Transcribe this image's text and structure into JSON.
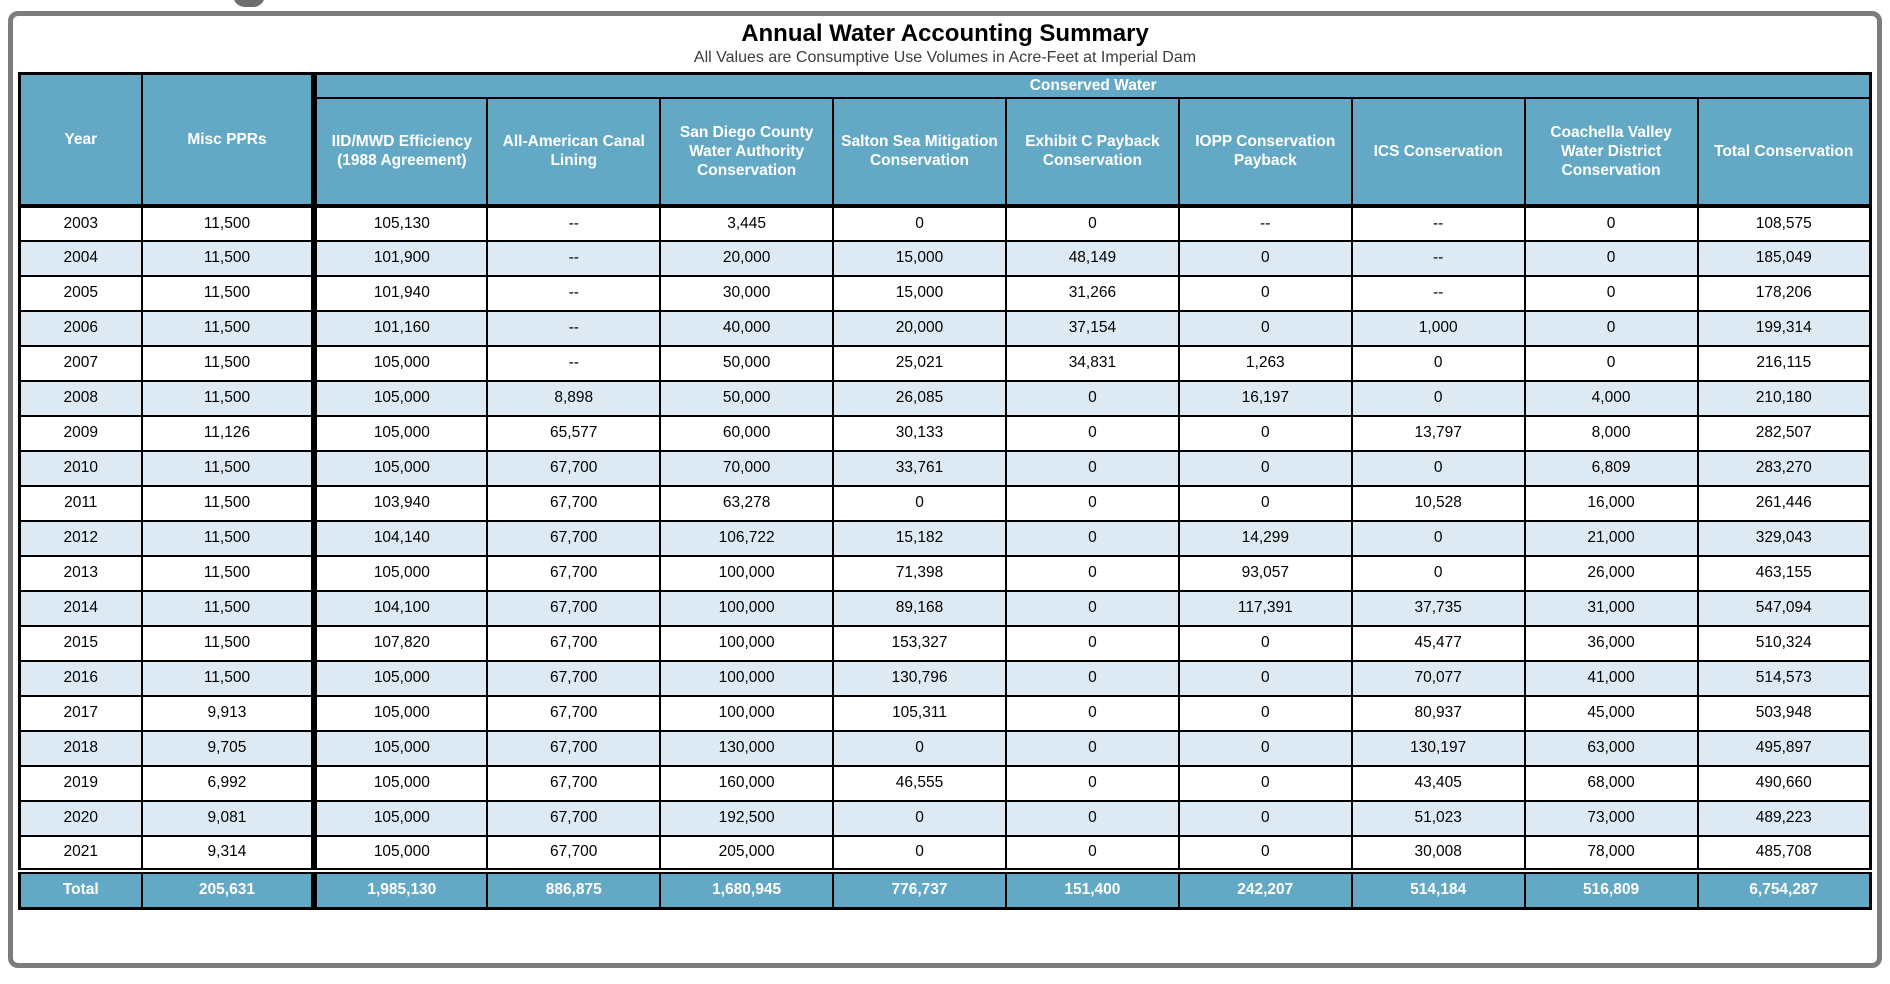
{
  "title": "Annual Water Accounting Summary",
  "subtitle": "All Values are Consumptive Use Volumes in Acre-Feet at Imperial Dam",
  "colors": {
    "header_bg": "#63a9c5",
    "row_alt_bg": "#deeaf3",
    "row_bg": "#ffffff",
    "grid_border": "#000000",
    "outer_frame_border": "#7d7d7d",
    "header_text": "#ffffff",
    "body_text": "#000000"
  },
  "table": {
    "group_header": "Conserved Water",
    "columns": [
      {
        "label": "Year",
        "in_group": false
      },
      {
        "label": "Misc PPRs",
        "in_group": false
      },
      {
        "label": "IID/MWD Efficiency (1988 Agreement)",
        "in_group": true
      },
      {
        "label": "All-American Canal Lining",
        "in_group": true
      },
      {
        "label": "San Diego County Water Authority Conservation",
        "in_group": true
      },
      {
        "label": "Salton Sea Mitigation Conservation",
        "in_group": true
      },
      {
        "label": "Exhibit C Payback Conservation",
        "in_group": true
      },
      {
        "label": "IOPP Conservation Payback",
        "in_group": true
      },
      {
        "label": "ICS Conservation",
        "in_group": true
      },
      {
        "label": "Coachella Valley Water District Conservation",
        "in_group": true
      },
      {
        "label": "Total Conservation",
        "in_group": true
      }
    ],
    "rows": [
      [
        "2003",
        "11,500",
        "105,130",
        "--",
        "3,445",
        "0",
        "0",
        "--",
        "--",
        "0",
        "108,575"
      ],
      [
        "2004",
        "11,500",
        "101,900",
        "--",
        "20,000",
        "15,000",
        "48,149",
        "0",
        "--",
        "0",
        "185,049"
      ],
      [
        "2005",
        "11,500",
        "101,940",
        "--",
        "30,000",
        "15,000",
        "31,266",
        "0",
        "--",
        "0",
        "178,206"
      ],
      [
        "2006",
        "11,500",
        "101,160",
        "--",
        "40,000",
        "20,000",
        "37,154",
        "0",
        "1,000",
        "0",
        "199,314"
      ],
      [
        "2007",
        "11,500",
        "105,000",
        "--",
        "50,000",
        "25,021",
        "34,831",
        "1,263",
        "0",
        "0",
        "216,115"
      ],
      [
        "2008",
        "11,500",
        "105,000",
        "8,898",
        "50,000",
        "26,085",
        "0",
        "16,197",
        "0",
        "4,000",
        "210,180"
      ],
      [
        "2009",
        "11,126",
        "105,000",
        "65,577",
        "60,000",
        "30,133",
        "0",
        "0",
        "13,797",
        "8,000",
        "282,507"
      ],
      [
        "2010",
        "11,500",
        "105,000",
        "67,700",
        "70,000",
        "33,761",
        "0",
        "0",
        "0",
        "6,809",
        "283,270"
      ],
      [
        "2011",
        "11,500",
        "103,940",
        "67,700",
        "63,278",
        "0",
        "0",
        "0",
        "10,528",
        "16,000",
        "261,446"
      ],
      [
        "2012",
        "11,500",
        "104,140",
        "67,700",
        "106,722",
        "15,182",
        "0",
        "14,299",
        "0",
        "21,000",
        "329,043"
      ],
      [
        "2013",
        "11,500",
        "105,000",
        "67,700",
        "100,000",
        "71,398",
        "0",
        "93,057",
        "0",
        "26,000",
        "463,155"
      ],
      [
        "2014",
        "11,500",
        "104,100",
        "67,700",
        "100,000",
        "89,168",
        "0",
        "117,391",
        "37,735",
        "31,000",
        "547,094"
      ],
      [
        "2015",
        "11,500",
        "107,820",
        "67,700",
        "100,000",
        "153,327",
        "0",
        "0",
        "45,477",
        "36,000",
        "510,324"
      ],
      [
        "2016",
        "11,500",
        "105,000",
        "67,700",
        "100,000",
        "130,796",
        "0",
        "0",
        "70,077",
        "41,000",
        "514,573"
      ],
      [
        "2017",
        "9,913",
        "105,000",
        "67,700",
        "100,000",
        "105,311",
        "0",
        "0",
        "80,937",
        "45,000",
        "503,948"
      ],
      [
        "2018",
        "9,705",
        "105,000",
        "67,700",
        "130,000",
        "0",
        "0",
        "0",
        "130,197",
        "63,000",
        "495,897"
      ],
      [
        "2019",
        "6,992",
        "105,000",
        "67,700",
        "160,000",
        "46,555",
        "0",
        "0",
        "43,405",
        "68,000",
        "490,660"
      ],
      [
        "2020",
        "9,081",
        "105,000",
        "67,700",
        "192,500",
        "0",
        "0",
        "0",
        "51,023",
        "73,000",
        "489,223"
      ],
      [
        "2021",
        "9,314",
        "105,000",
        "67,700",
        "205,000",
        "0",
        "0",
        "0",
        "30,008",
        "78,000",
        "485,708"
      ]
    ],
    "total_row": [
      "Total",
      "205,631",
      "1,985,130",
      "886,875",
      "1,680,945",
      "776,737",
      "151,400",
      "242,207",
      "514,184",
      "516,809",
      "6,754,287"
    ]
  }
}
